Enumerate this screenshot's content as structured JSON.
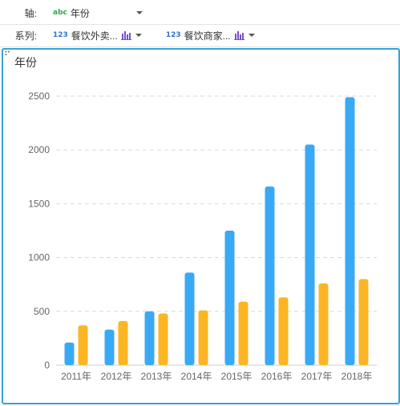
{
  "axis_row": {
    "label": "轴:",
    "type_badge": "abc",
    "field": "年份"
  },
  "series_row": {
    "label": "系列:",
    "fields": [
      {
        "type_badge": "123",
        "name": "餐饮外卖..."
      },
      {
        "type_badge": "123",
        "name": "餐饮商家..."
      }
    ]
  },
  "chart_title": "年份",
  "colors": {
    "series1": "#3aa9f5",
    "series2": "#fcb524",
    "frame": "#37a2da",
    "grid": "#d9d9d9",
    "axis_text": "#666666"
  },
  "chart_data": {
    "type": "bar",
    "categories": [
      "2011年",
      "2012年",
      "2013年",
      "2014年",
      "2015年",
      "2016年",
      "2017年",
      "2018年"
    ],
    "series": [
      {
        "values": [
          210,
          330,
          500,
          860,
          1250,
          1660,
          2050,
          2490
        ]
      },
      {
        "values": [
          370,
          410,
          480,
          510,
          590,
          630,
          760,
          800
        ]
      }
    ],
    "ylim": [
      0,
      2500
    ],
    "yticks": [
      0,
      500,
      1000,
      1500,
      2000,
      2500
    ],
    "grid": true
  }
}
